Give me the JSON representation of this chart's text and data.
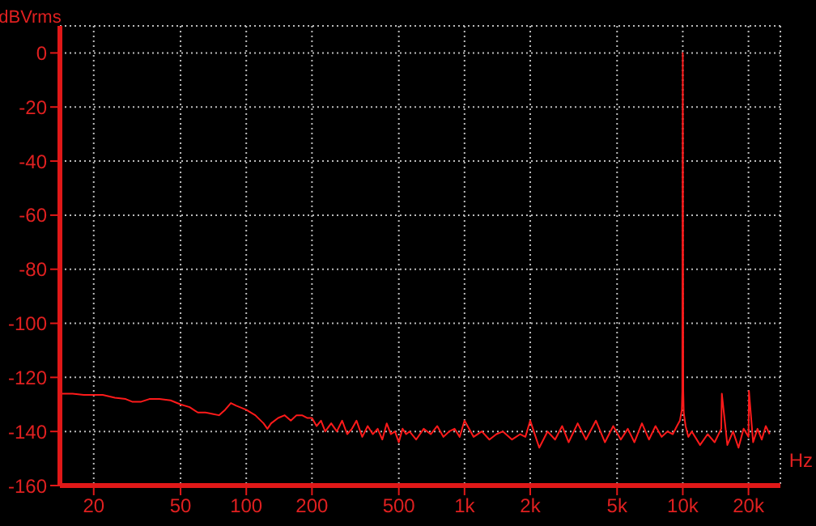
{
  "chart_data": {
    "type": "line",
    "xlabel": "Hz",
    "ylabel": "dBVrms",
    "log": "x",
    "grid": true,
    "xlim": [
      14,
      28000
    ],
    "ylim": [
      -160,
      10
    ],
    "xticks": [
      20,
      50,
      100,
      200,
      500,
      {
        "value": 1000,
        "label": "1k"
      },
      {
        "value": 2000,
        "label": "2k"
      },
      {
        "value": 5000,
        "label": "5k"
      },
      {
        "value": 10000,
        "label": "10k"
      },
      {
        "value": 20000,
        "label": "20k"
      }
    ],
    "yticks": [
      0,
      -20,
      -40,
      -60,
      -80,
      -100,
      -120,
      -140,
      -160
    ],
    "x": [
      14,
      16,
      18,
      20,
      22,
      25,
      28,
      30,
      33,
      36,
      40,
      45,
      50,
      55,
      60,
      65,
      70,
      75,
      80,
      85,
      90,
      100,
      110,
      120,
      125,
      130,
      140,
      150,
      160,
      170,
      180,
      190,
      200,
      210,
      220,
      230,
      245,
      260,
      275,
      290,
      305,
      320,
      340,
      360,
      380,
      400,
      420,
      440,
      460,
      480,
      500,
      520,
      540,
      560,
      600,
      650,
      700,
      750,
      800,
      850,
      900,
      950,
      1000,
      1100,
      1200,
      1300,
      1400,
      1500,
      1650,
      1800,
      1900,
      2000,
      2200,
      2400,
      2600,
      2800,
      3000,
      3300,
      3600,
      4000,
      4400,
      4800,
      5200,
      5600,
      6000,
      6500,
      7000,
      7500,
      8000,
      8500,
      9000,
      9400,
      9700,
      9900,
      9950,
      10000,
      10050,
      10100,
      10300,
      10600,
      11000,
      12000,
      13000,
      14000,
      15000,
      15100,
      16000,
      17000,
      18000,
      19000,
      20000,
      20100,
      21000,
      22000,
      23000,
      24000,
      25000
    ],
    "series": [
      {
        "color": "#ff1a1a",
        "values": [
          -126,
          -126,
          -126.5,
          -126.5,
          -126.5,
          -127.5,
          -128,
          -129,
          -129,
          -128,
          -128,
          -128.5,
          -130,
          -131,
          -133,
          -133,
          -133.5,
          -134,
          -132,
          -129.5,
          -130.5,
          -132,
          -134,
          -137,
          -139,
          -137,
          -135,
          -134,
          -136,
          -134,
          -134,
          -135,
          -135,
          -138,
          -136,
          -140,
          -137,
          -140,
          -136,
          -141,
          -139,
          -136,
          -142,
          -138,
          -141,
          -139,
          -143,
          -137,
          -141,
          -140,
          -144,
          -139,
          -141,
          -140,
          -143,
          -139,
          -141,
          -138,
          -142,
          -140,
          -139,
          -142,
          -136,
          -142,
          -140,
          -143,
          -141,
          -140,
          -143,
          -141,
          -142,
          -136,
          -146,
          -140,
          -143,
          -138,
          -144,
          -137,
          -143,
          -136,
          -144,
          -138,
          -143,
          -139,
          -144,
          -137,
          -143,
          -138,
          -142,
          -140,
          -141,
          -138,
          -136,
          -132,
          -125,
          0,
          -125,
          -133,
          -138,
          -142,
          -140,
          -145,
          -141,
          -144,
          -139,
          -126,
          -145,
          -140,
          -146,
          -139,
          -142,
          -125,
          -144,
          -139,
          -143,
          -138,
          -141
        ]
      }
    ]
  }
}
